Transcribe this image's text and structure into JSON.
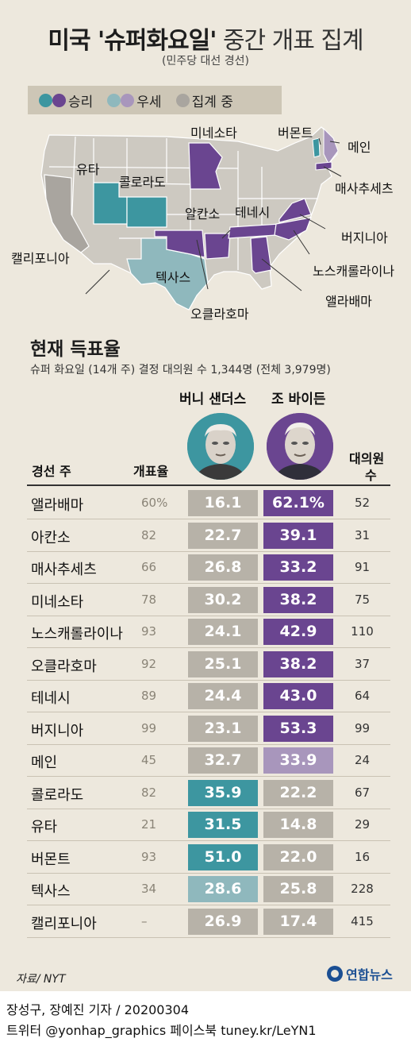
{
  "title_bold": "미국 '슈퍼화요일'",
  "title_light": "중간 개표 집계",
  "subtitle": "(민주당 대선 경선)",
  "legend": {
    "win": "승리",
    "lead": "우세",
    "counting": "집계 중"
  },
  "colors": {
    "sanders_win": "#3d96a0",
    "biden_win": "#6a4590",
    "sanders_lead": "#8fb8bd",
    "biden_lead": "#a896bc",
    "neutral": "#b7b2a8",
    "map_base": "#cdc9c1"
  },
  "map_labels": {
    "minnesota": "미네소타",
    "vermont": "버몬트",
    "maine": "메인",
    "utah": "유타",
    "colorado": "콜로라도",
    "massachusetts": "매사추세츠",
    "arkansas": "알칸소",
    "tennessee": "테네시",
    "virginia": "버지니아",
    "california": "캘리포니아",
    "north_carolina": "노스캐롤라이나",
    "texas": "텍사스",
    "alabama": "앨라배마",
    "oklahoma": "오클라호마"
  },
  "section_title": "현재 득표율",
  "section_sub": "슈퍼 화요일 (14개 주) 결정 대의원 수 1,344명 (전체 3,979명)",
  "candidates": {
    "sanders": "버니 샌더스",
    "biden": "조 바이든"
  },
  "columns": {
    "state": "경선 주",
    "counted": "개표율",
    "delegates_1": "대의원",
    "delegates_2": "수"
  },
  "chart_data": {
    "type": "table",
    "columns": [
      "경선 주",
      "개표율",
      "버니 샌더스",
      "조 바이든",
      "대의원 수"
    ],
    "rows": [
      {
        "state": "앨라배마",
        "counted": "60%",
        "sanders": "16.1",
        "biden": "62.1%",
        "delegates": "52",
        "status": "biden_win"
      },
      {
        "state": "아칸소",
        "counted": "82",
        "sanders": "22.7",
        "biden": "39.1",
        "delegates": "31",
        "status": "biden_win"
      },
      {
        "state": "매사추세츠",
        "counted": "66",
        "sanders": "26.8",
        "biden": "33.2",
        "delegates": "91",
        "status": "biden_win"
      },
      {
        "state": "미네소타",
        "counted": "78",
        "sanders": "30.2",
        "biden": "38.2",
        "delegates": "75",
        "status": "biden_win"
      },
      {
        "state": "노스캐롤라이나",
        "counted": "93",
        "sanders": "24.1",
        "biden": "42.9",
        "delegates": "110",
        "status": "biden_win"
      },
      {
        "state": "오클라호마",
        "counted": "92",
        "sanders": "25.1",
        "biden": "38.2",
        "delegates": "37",
        "status": "biden_win"
      },
      {
        "state": "테네시",
        "counted": "89",
        "sanders": "24.4",
        "biden": "43.0",
        "delegates": "64",
        "status": "biden_win"
      },
      {
        "state": "버지니아",
        "counted": "99",
        "sanders": "23.1",
        "biden": "53.3",
        "delegates": "99",
        "status": "biden_win"
      },
      {
        "state": "메인",
        "counted": "45",
        "sanders": "32.7",
        "biden": "33.9",
        "delegates": "24",
        "status": "biden_lead"
      },
      {
        "state": "콜로라도",
        "counted": "82",
        "sanders": "35.9",
        "biden": "22.2",
        "delegates": "67",
        "status": "sanders_win"
      },
      {
        "state": "유타",
        "counted": "21",
        "sanders": "31.5",
        "biden": "14.8",
        "delegates": "29",
        "status": "sanders_win"
      },
      {
        "state": "버몬트",
        "counted": "93",
        "sanders": "51.0",
        "biden": "22.0",
        "delegates": "16",
        "status": "sanders_win"
      },
      {
        "state": "텍사스",
        "counted": "34",
        "sanders": "28.6",
        "biden": "25.8",
        "delegates": "228",
        "status": "sanders_lead"
      },
      {
        "state": "캘리포니아",
        "counted": "–",
        "sanders": "26.9",
        "biden": "17.4",
        "delegates": "415",
        "status": "counting"
      }
    ]
  },
  "source": "자료/ NYT",
  "logo_text": "연합뉴스",
  "credit_1": "장성구, 장예진 기자 / 20200304",
  "credit_2": "트위터 @yonhap_graphics  페이스북 tuney.kr/LeYN1"
}
